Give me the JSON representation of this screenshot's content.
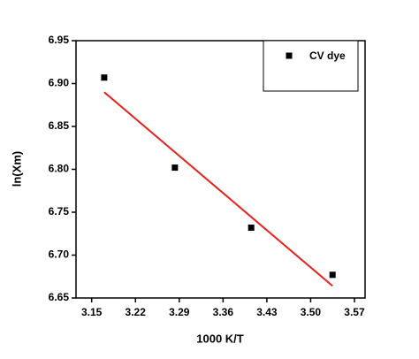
{
  "chart_data": {
    "type": "scatter",
    "x_label": "1000 K/T",
    "y_label": "ln(Xm)",
    "series": [
      {
        "name": "CV dye",
        "color": "#000000",
        "x": [
          3.17,
          3.283,
          3.405,
          3.535
        ],
        "values": [
          6.907,
          6.802,
          6.732,
          6.677
        ]
      }
    ],
    "fit_line": {
      "color": "#e8201c",
      "x": [
        3.17,
        3.535
      ],
      "values": [
        6.89,
        6.664
      ]
    },
    "xlim": [
      3.125,
      3.587
    ],
    "xticks": [
      3.15,
      3.22,
      3.29,
      3.36,
      3.43,
      {
        "value": 3.5,
        "label": "3.50"
      },
      3.57
    ],
    "ylim": [
      6.65,
      6.95
    ],
    "yticks": [
      6.65,
      {
        "value": 6.7,
        "label": "6.70"
      },
      6.75,
      {
        "value": 6.8,
        "label": "6.80"
      },
      6.85,
      {
        "value": 6.9,
        "label": "6.90"
      },
      6.95
    ],
    "legend": "upper right"
  }
}
